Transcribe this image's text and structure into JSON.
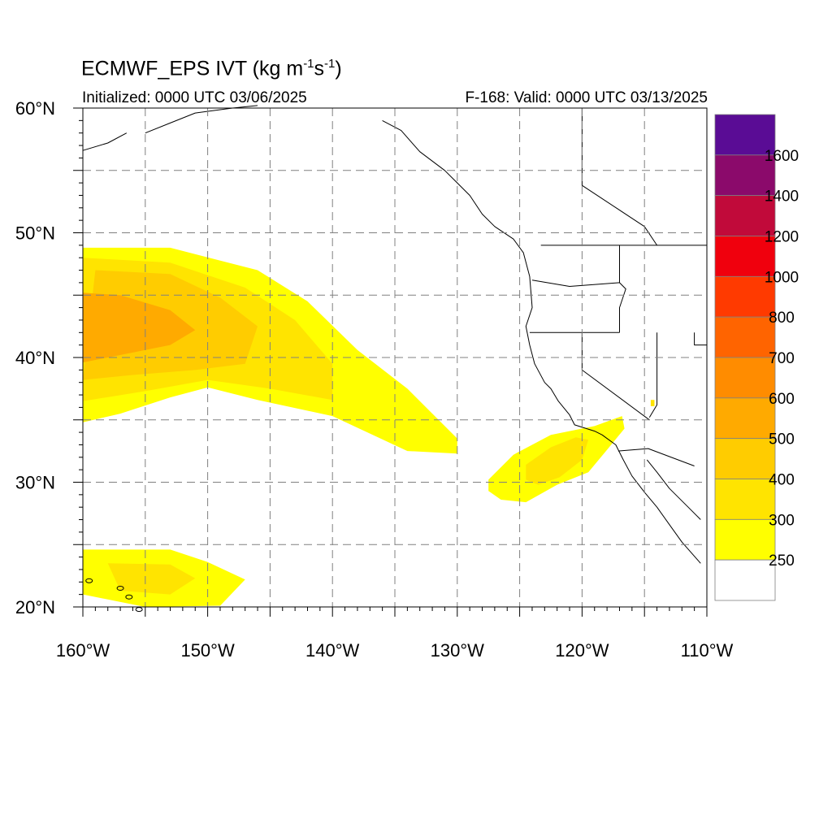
{
  "header": {
    "title_main": "ECMWF_EPS IVT (kg m",
    "title_exp1": "-1",
    "title_mid": "s",
    "title_exp2": "-1",
    "title_end": ")",
    "initialized": "Initialized: 0000 UTC 03/06/2025",
    "valid": "F-168: Valid: 0000 UTC 03/13/2025"
  },
  "map": {
    "lon_range": [
      -160,
      -110
    ],
    "lat_range": [
      20,
      60
    ],
    "lon_labels": [
      {
        "lon": -160,
        "text": "160°W"
      },
      {
        "lon": -150,
        "text": "150°W"
      },
      {
        "lon": -140,
        "text": "140°W"
      },
      {
        "lon": -130,
        "text": "130°W"
      },
      {
        "lon": -120,
        "text": "120°W"
      },
      {
        "lon": -110,
        "text": "110°W"
      }
    ],
    "lat_labels": [
      {
        "lat": 60,
        "text": "60°N"
      },
      {
        "lat": 50,
        "text": "50°N"
      },
      {
        "lat": 40,
        "text": "40°N"
      },
      {
        "lat": 30,
        "text": "30°N"
      },
      {
        "lat": 20,
        "text": "20°N"
      }
    ],
    "gridlines_lon": [
      -155,
      -150,
      -145,
      -140,
      -135,
      -130,
      -125,
      -120,
      -115
    ],
    "gridlines_lat": [
      25,
      30,
      35,
      40,
      45,
      50,
      55
    ]
  },
  "colorbar": {
    "labels": [
      "1600",
      "1400",
      "1200",
      "1000",
      "800",
      "700",
      "600",
      "500",
      "400",
      "300",
      "250"
    ],
    "colors": [
      "#5a0c95",
      "#8b0a6b",
      "#c10a3a",
      "#f0000d",
      "#ff3a00",
      "#ff6400",
      "#ff8c00",
      "#ffaa00",
      "#ffcc00",
      "#ffe400",
      "#ffff00",
      "#ffffff"
    ]
  },
  "fields": {
    "levels_colors": {
      "250": "#ffff00",
      "300": "#ffe400",
      "400": "#ffcc00",
      "500": "#ffaa00"
    },
    "north_pacific_ar": [
      {
        "level": "250",
        "polygon": [
          [
            -160,
            48.8
          ],
          [
            -153,
            48.8
          ],
          [
            -146,
            47
          ],
          [
            -142,
            44.5
          ],
          [
            -138,
            40.6
          ],
          [
            -134,
            37.5
          ],
          [
            -130,
            33.5
          ],
          [
            -130,
            32.3
          ],
          [
            -134,
            32.5
          ],
          [
            -140,
            35.3
          ],
          [
            -146,
            36.6
          ],
          [
            -150,
            37.6
          ],
          [
            -153,
            36.8
          ],
          [
            -157,
            35.5
          ],
          [
            -160,
            34.8
          ]
        ]
      },
      {
        "level": "300",
        "polygon": [
          [
            -160,
            48
          ],
          [
            -153,
            47.6
          ],
          [
            -147,
            45.6
          ],
          [
            -143,
            43
          ],
          [
            -140,
            39.5
          ],
          [
            -140,
            36.6
          ],
          [
            -145,
            37.5
          ],
          [
            -150,
            38.2
          ],
          [
            -155,
            37.3
          ],
          [
            -160,
            36.5
          ]
        ]
      },
      {
        "level": "400",
        "polygon": [
          [
            -159,
            47
          ],
          [
            -153,
            46.7
          ],
          [
            -149,
            44.8
          ],
          [
            -146,
            42.5
          ],
          [
            -147,
            39.5
          ],
          [
            -151,
            39
          ],
          [
            -156,
            38.6
          ],
          [
            -160,
            38.2
          ]
        ]
      },
      {
        "level": "500",
        "polygon": [
          [
            -160,
            45.2
          ],
          [
            -157,
            45
          ],
          [
            -153,
            43.8
          ],
          [
            -151,
            42.2
          ],
          [
            -153,
            41
          ],
          [
            -156,
            40.4
          ],
          [
            -160,
            39.6
          ]
        ]
      }
    ],
    "subtropical_ar": [
      {
        "level": "250",
        "polygon": [
          [
            -160,
            24.6
          ],
          [
            -153,
            24.6
          ],
          [
            -150,
            23.6
          ],
          [
            -147,
            22.2
          ],
          [
            -149,
            20.1
          ],
          [
            -155,
            20
          ],
          [
            -160,
            21
          ]
        ]
      },
      {
        "level": "300",
        "polygon": [
          [
            -158,
            23.5
          ],
          [
            -153,
            23.4
          ],
          [
            -151,
            22.3
          ],
          [
            -153,
            21
          ],
          [
            -157,
            21.3
          ]
        ]
      }
    ],
    "socal_ar": [
      {
        "level": "250",
        "polygon": [
          [
            -127.5,
            30.2
          ],
          [
            -125.5,
            32.2
          ],
          [
            -122.5,
            33.8
          ],
          [
            -119,
            34.5
          ],
          [
            -116.8,
            35.3
          ],
          [
            -116.6,
            34.3
          ],
          [
            -118,
            32.6
          ],
          [
            -119.5,
            30.8
          ],
          [
            -122,
            29.8
          ],
          [
            -124.5,
            28.4
          ],
          [
            -126.5,
            28.6
          ],
          [
            -127.5,
            29.3
          ]
        ]
      },
      {
        "level": "300",
        "polygon": [
          [
            -124.5,
            31.4
          ],
          [
            -122.5,
            32.8
          ],
          [
            -120.5,
            33.6
          ],
          [
            -119.5,
            33.4
          ],
          [
            -120,
            31.8
          ],
          [
            -121.8,
            30.4
          ],
          [
            -123.5,
            29.8
          ],
          [
            -124.5,
            30.2
          ]
        ]
      }
    ],
    "inland_blob": [
      {
        "level": "300",
        "polygon": [
          [
            -114.5,
            36.6
          ],
          [
            -114.2,
            36.6
          ],
          [
            -114.2,
            36.1
          ],
          [
            -114.5,
            36.1
          ]
        ]
      }
    ]
  }
}
